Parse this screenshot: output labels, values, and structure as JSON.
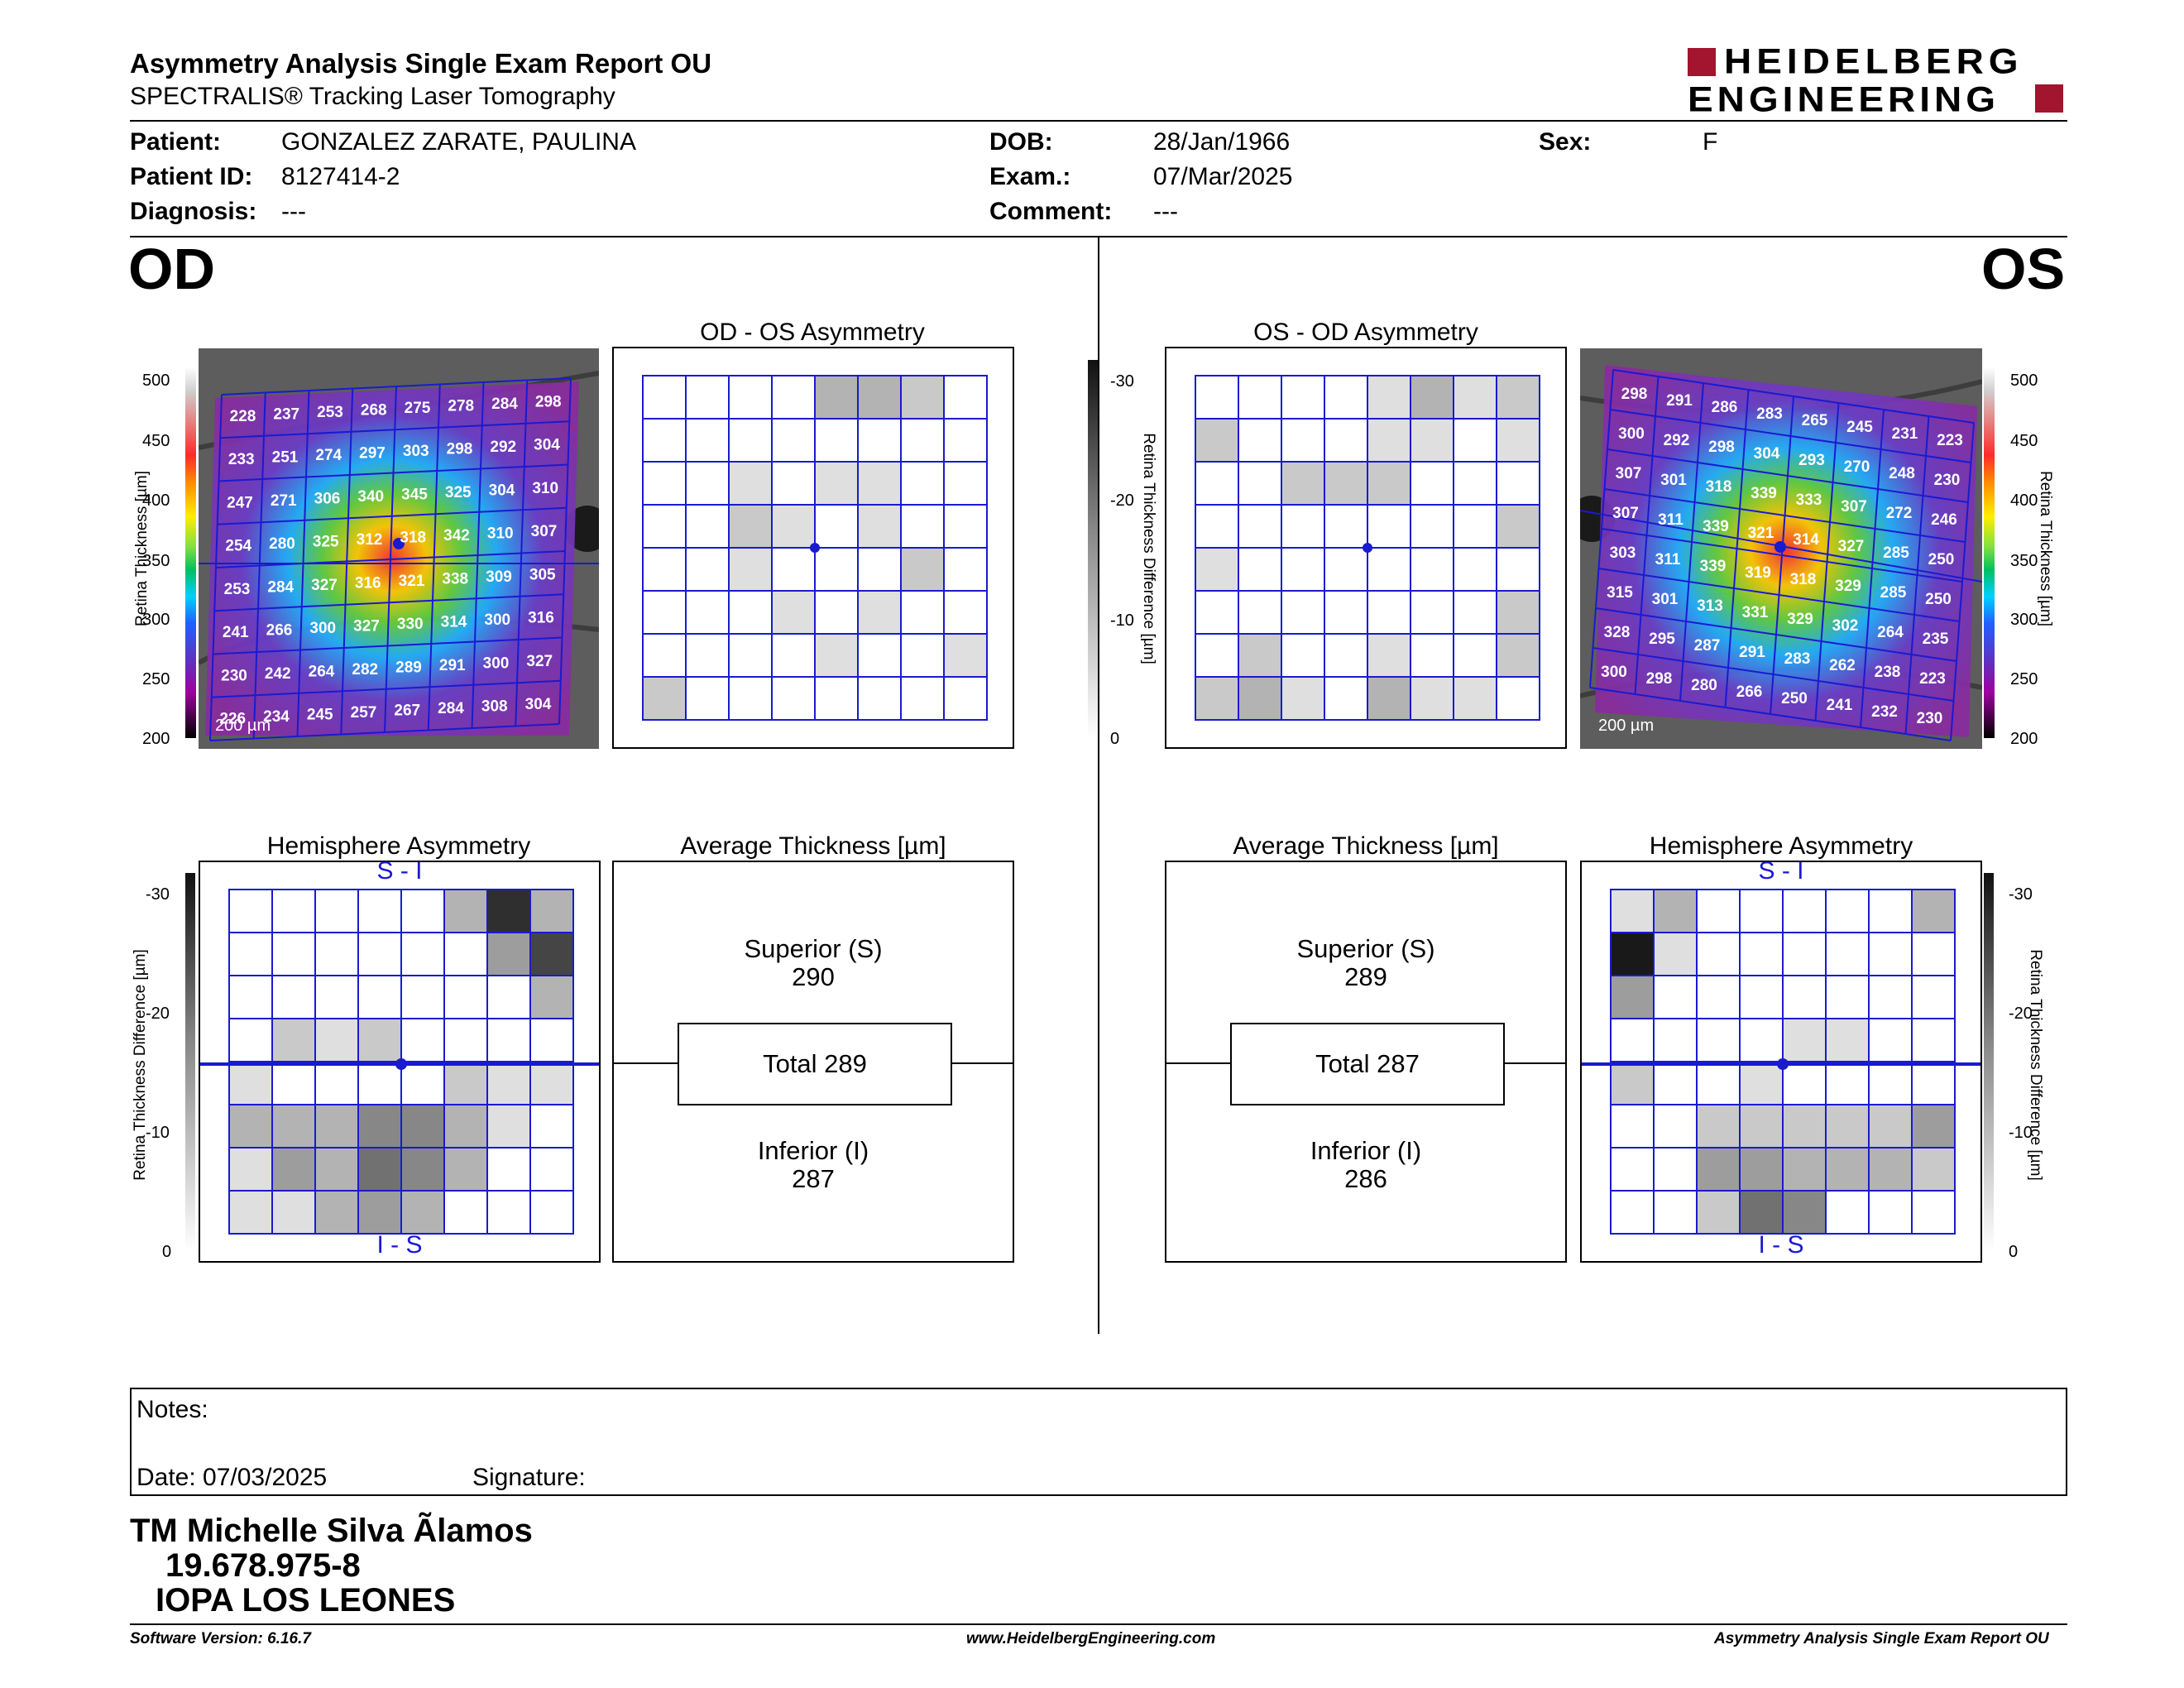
{
  "header": {
    "title": "Asymmetry Analysis Single Exam Report OU",
    "subtitle": "SPECTRALIS® Tracking Laser Tomography",
    "brand_line1": "HEIDELBERG",
    "brand_line2": "ENGINEERING",
    "brand_color": "#a3142e"
  },
  "patient": {
    "patient_label": "Patient:",
    "patient_value": "GONZALEZ ZARATE, PAULINA",
    "id_label": "Patient ID:",
    "id_value": "8127414-2",
    "diag_label": "Diagnosis:",
    "diag_value": "---",
    "dob_label": "DOB:",
    "dob_value": "28/Jan/1966",
    "exam_label": "Exam.:",
    "exam_value": "07/Mar/2025",
    "comment_label": "Comment:",
    "comment_value": "---",
    "sex_label": "Sex:",
    "sex_value": "F"
  },
  "od": {
    "label": "OD",
    "asym_title": "OD - OS Asymmetry",
    "hemi_title": "Hemisphere Asymmetry",
    "avg_title": "Average Thickness [µm]",
    "superior_label": "Superior (S)",
    "superior_value": "290",
    "total": "Total 289",
    "inferior_label": "Inferior (I)",
    "inferior_value": "287",
    "scale_bar": "200 µm",
    "grid": [
      [
        228,
        237,
        253,
        268,
        275,
        278,
        284,
        298
      ],
      [
        233,
        251,
        274,
        297,
        303,
        298,
        292,
        304
      ],
      [
        247,
        271,
        306,
        340,
        345,
        325,
        304,
        310
      ],
      [
        254,
        280,
        325,
        312,
        318,
        342,
        310,
        307
      ],
      [
        253,
        284,
        327,
        316,
        321,
        338,
        309,
        305
      ],
      [
        241,
        266,
        300,
        327,
        330,
        314,
        300,
        316
      ],
      [
        230,
        242,
        264,
        282,
        289,
        291,
        300,
        327
      ],
      [
        226,
        234,
        245,
        257,
        267,
        284,
        308,
        304
      ]
    ],
    "asym_gray": [
      [
        0,
        0,
        0,
        0,
        3,
        3,
        2,
        0
      ],
      [
        0,
        0,
        0,
        0,
        0,
        0,
        0,
        0
      ],
      [
        0,
        0,
        1,
        0,
        1,
        1,
        0,
        0
      ],
      [
        0,
        0,
        2,
        1,
        0,
        1,
        0,
        0
      ],
      [
        0,
        0,
        1,
        0,
        0,
        0,
        2,
        0
      ],
      [
        0,
        0,
        0,
        1,
        0,
        1,
        0,
        0
      ],
      [
        0,
        0,
        0,
        0,
        1,
        0,
        0,
        1
      ],
      [
        2,
        0,
        0,
        0,
        0,
        0,
        0,
        0
      ]
    ],
    "hemi_gray": [
      [
        0,
        0,
        0,
        0,
        0,
        3,
        9,
        3
      ],
      [
        0,
        0,
        0,
        0,
        0,
        0,
        4,
        8
      ],
      [
        0,
        0,
        0,
        0,
        0,
        0,
        0,
        3
      ],
      [
        0,
        2,
        1,
        2,
        0,
        0,
        0,
        0
      ],
      [
        1,
        0,
        0,
        0,
        0,
        2,
        1,
        1
      ],
      [
        3,
        3,
        3,
        5,
        5,
        3,
        1,
        0
      ],
      [
        1,
        4,
        3,
        6,
        5,
        3,
        0,
        0
      ],
      [
        1,
        1,
        3,
        4,
        3,
        0,
        0,
        0
      ]
    ],
    "hemi_top": "S - I",
    "hemi_bottom": "I - S"
  },
  "os": {
    "label": "OS",
    "asym_title": "OS - OD Asymmetry",
    "hemi_title": "Hemisphere Asymmetry",
    "avg_title": "Average Thickness [µm]",
    "superior_label": "Superior (S)",
    "superior_value": "289",
    "total": "Total 287",
    "inferior_label": "Inferior (I)",
    "inferior_value": "286",
    "scale_bar": "200 µm",
    "grid": [
      [
        298,
        291,
        286,
        283,
        265,
        245,
        231,
        223
      ],
      [
        300,
        292,
        298,
        304,
        293,
        270,
        248,
        230
      ],
      [
        307,
        301,
        318,
        339,
        333,
        307,
        272,
        246
      ],
      [
        307,
        311,
        339,
        321,
        314,
        327,
        285,
        250
      ],
      [
        303,
        311,
        339,
        319,
        318,
        329,
        285,
        250
      ],
      [
        315,
        301,
        313,
        331,
        329,
        302,
        264,
        235
      ],
      [
        328,
        295,
        287,
        291,
        283,
        262,
        238,
        223
      ],
      [
        300,
        298,
        280,
        266,
        250,
        241,
        232,
        230
      ]
    ],
    "asym_gray": [
      [
        0,
        0,
        0,
        0,
        1,
        3,
        1,
        2
      ],
      [
        2,
        0,
        0,
        0,
        1,
        1,
        0,
        1
      ],
      [
        0,
        0,
        2,
        2,
        2,
        0,
        0,
        0
      ],
      [
        0,
        0,
        0,
        0,
        0,
        0,
        0,
        2
      ],
      [
        1,
        0,
        0,
        0,
        0,
        0,
        0,
        0
      ],
      [
        0,
        0,
        0,
        0,
        0,
        0,
        0,
        2
      ],
      [
        0,
        2,
        0,
        0,
        1,
        0,
        0,
        2
      ],
      [
        2,
        3,
        1,
        0,
        3,
        1,
        1,
        0
      ]
    ],
    "hemi_gray": [
      [
        1,
        3,
        0,
        0,
        0,
        0,
        0,
        3
      ],
      [
        10,
        1,
        0,
        0,
        0,
        0,
        0,
        0
      ],
      [
        4,
        0,
        0,
        0,
        0,
        0,
        0,
        0
      ],
      [
        0,
        0,
        0,
        0,
        1,
        1,
        0,
        0
      ],
      [
        2,
        0,
        0,
        1,
        0,
        0,
        0,
        0
      ],
      [
        0,
        0,
        2,
        2,
        2,
        2,
        2,
        4
      ],
      [
        0,
        0,
        4,
        4,
        3,
        3,
        3,
        2
      ],
      [
        0,
        0,
        2,
        6,
        5,
        0,
        0,
        0
      ]
    ],
    "hemi_top": "S - I",
    "hemi_bottom": "I - S"
  },
  "thickness_scale": {
    "ticks": [
      "500",
      "450",
      "400",
      "350",
      "300",
      "250",
      "200"
    ],
    "axis_label": "Retina Thickness [µm]"
  },
  "diff_scale": {
    "ticks": [
      "-30",
      "-20",
      "-10",
      "0"
    ],
    "axis_label": "Retina Thickness Difference [µm]"
  },
  "notes": {
    "notes_label": "Notes:",
    "date_label": "Date: 07/03/2025",
    "signature_label": "Signature:"
  },
  "signer": {
    "name": "TM Michelle Silva Ãlamos",
    "rut": "19.678.975-8",
    "institution": "IOPA LOS LEONES"
  },
  "footer": {
    "software": "Software Version: 6.16.7",
    "website": "www.HeidelbergEngineering.com",
    "report": "Asymmetry Analysis Single Exam Report OU"
  },
  "colors": {
    "grid_line": "#1a1ad0",
    "text": "#000000"
  }
}
